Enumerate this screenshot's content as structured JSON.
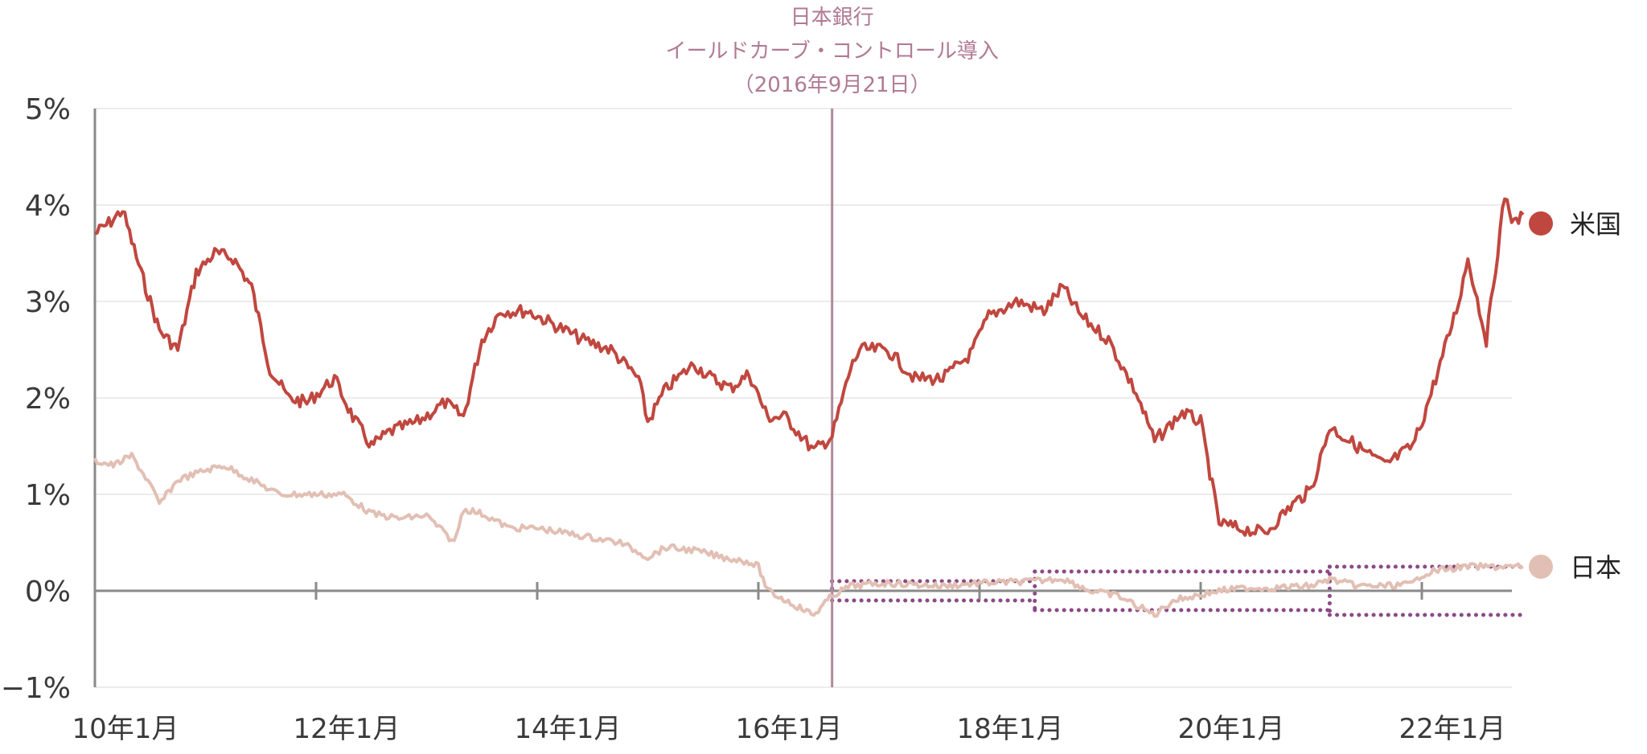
{
  "chart_data": {
    "type": "line",
    "annotation": {
      "lines": [
        "日本銀行",
        "イールドカーブ・コントロール導入",
        "（2016年9月21日）"
      ],
      "date": "2016-09-21",
      "color": "#b08a9c"
    },
    "y_ticks": [
      "5%",
      "4%",
      "3%",
      "2%",
      "1%",
      "0%",
      "−1%"
    ],
    "y_tick_values": [
      5,
      4,
      3,
      2,
      1,
      0,
      -1
    ],
    "x_ticks": [
      "10年1月",
      "12年1月",
      "14年1月",
      "16年1月",
      "18年1月",
      "20年1月",
      "22年1月"
    ],
    "x_tick_dates": [
      "2010-01",
      "2012-01",
      "2014-01",
      "2016-01",
      "2018-01",
      "2020-01",
      "2022-01"
    ],
    "x_range": [
      "2010-01",
      "2022-12"
    ],
    "ylim": [
      -1,
      5
    ],
    "grid": true,
    "legend_position": "right",
    "series": [
      {
        "name": "米国",
        "color": "#c0473f",
        "x": [
          "2010-01",
          "2010-03",
          "2010-04",
          "2010-06",
          "2010-08",
          "2010-10",
          "2010-12",
          "2011-02",
          "2011-04",
          "2011-06",
          "2011-08",
          "2011-10",
          "2011-12",
          "2012-03",
          "2012-05",
          "2012-07",
          "2012-09",
          "2012-12",
          "2013-03",
          "2013-05",
          "2013-07",
          "2013-09",
          "2013-12",
          "2014-03",
          "2014-06",
          "2014-09",
          "2014-12",
          "2015-01",
          "2015-03",
          "2015-06",
          "2015-08",
          "2015-10",
          "2015-12",
          "2016-02",
          "2016-04",
          "2016-07",
          "2016-09",
          "2016-11",
          "2016-12",
          "2017-03",
          "2017-06",
          "2017-09",
          "2017-12",
          "2018-02",
          "2018-05",
          "2018-08",
          "2018-10",
          "2018-12",
          "2019-03",
          "2019-06",
          "2019-08",
          "2019-11",
          "2020-01",
          "2020-03",
          "2020-05",
          "2020-08",
          "2020-11",
          "2021-01",
          "2021-03",
          "2021-06",
          "2021-09",
          "2021-12",
          "2022-01",
          "2022-03",
          "2022-05",
          "2022-06",
          "2022-08",
          "2022-10",
          "2022-11",
          "2022-12"
        ],
        "values": [
          3.7,
          3.85,
          3.95,
          3.3,
          2.7,
          2.5,
          3.3,
          3.5,
          3.45,
          3.15,
          2.3,
          2.0,
          1.95,
          2.2,
          1.8,
          1.5,
          1.65,
          1.75,
          1.95,
          1.8,
          2.6,
          2.9,
          2.9,
          2.75,
          2.6,
          2.5,
          2.2,
          1.75,
          2.1,
          2.35,
          2.2,
          2.1,
          2.25,
          1.8,
          1.8,
          1.45,
          1.6,
          2.3,
          2.5,
          2.5,
          2.2,
          2.2,
          2.45,
          2.85,
          3.0,
          2.9,
          3.15,
          2.85,
          2.6,
          2.05,
          1.55,
          1.85,
          1.75,
          0.7,
          0.65,
          0.6,
          0.9,
          1.05,
          1.7,
          1.5,
          1.3,
          1.5,
          1.75,
          2.35,
          3.0,
          3.45,
          2.6,
          4.1,
          3.8,
          3.9
        ]
      },
      {
        "name": "日本",
        "color": "#e2bfb4",
        "x": [
          "2010-01",
          "2010-03",
          "2010-05",
          "2010-07",
          "2010-08",
          "2010-10",
          "2011-01",
          "2011-03",
          "2011-06",
          "2011-09",
          "2011-12",
          "2012-04",
          "2012-07",
          "2012-10",
          "2013-01",
          "2013-04",
          "2013-05",
          "2013-07",
          "2013-10",
          "2014-01",
          "2014-04",
          "2014-07",
          "2014-10",
          "2015-01",
          "2015-03",
          "2015-06",
          "2015-09",
          "2015-12",
          "2016-01",
          "2016-02",
          "2016-04",
          "2016-06",
          "2016-07",
          "2016-09",
          "2016-11",
          "2017-03",
          "2017-09",
          "2018-01",
          "2018-07",
          "2018-10",
          "2019-01",
          "2019-04",
          "2019-08",
          "2019-10",
          "2020-03",
          "2020-06",
          "2020-09",
          "2021-01",
          "2021-03",
          "2021-06",
          "2021-09",
          "2021-12",
          "2022-01",
          "2022-03",
          "2022-06",
          "2022-09",
          "2022-12"
        ],
        "values": [
          1.35,
          1.3,
          1.4,
          1.1,
          0.9,
          1.15,
          1.25,
          1.3,
          1.15,
          1.0,
          1.0,
          1.0,
          0.8,
          0.75,
          0.78,
          0.5,
          0.85,
          0.8,
          0.65,
          0.65,
          0.6,
          0.55,
          0.5,
          0.35,
          0.45,
          0.42,
          0.35,
          0.3,
          0.25,
          0.0,
          -0.1,
          -0.2,
          -0.25,
          -0.05,
          0.05,
          0.08,
          0.05,
          0.08,
          0.1,
          0.13,
          0.0,
          -0.05,
          -0.25,
          -0.1,
          0.0,
          0.03,
          0.03,
          0.05,
          0.12,
          0.05,
          0.05,
          0.07,
          0.17,
          0.22,
          0.25,
          0.25,
          0.25
        ]
      }
    ],
    "bands": [
      {
        "start": "2016-09",
        "end": "2018-07",
        "upper": 0.1,
        "lower": -0.1
      },
      {
        "start": "2018-07",
        "end": "2021-03",
        "upper": 0.2,
        "lower": -0.2
      },
      {
        "start": "2021-03",
        "end": "2022-12",
        "upper": 0.25,
        "lower": -0.25
      }
    ],
    "band_color": "#8b4a86"
  }
}
